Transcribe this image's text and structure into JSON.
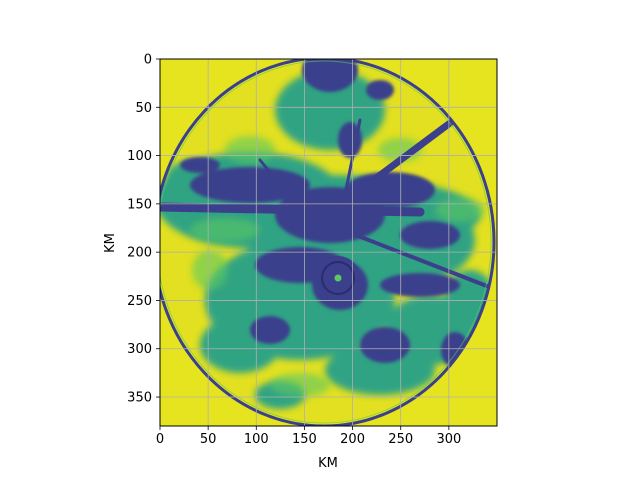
{
  "chart_data": {
    "type": "heatmap",
    "title": "",
    "xlabel": "KM",
    "ylabel": "KM",
    "xlim": [
      0,
      350
    ],
    "ylim": [
      380,
      0
    ],
    "x_ticks": [
      0,
      50,
      100,
      150,
      200,
      250,
      300
    ],
    "y_ticks": [
      0,
      50,
      100,
      150,
      200,
      250,
      300,
      350
    ],
    "grid": true,
    "colormap": "viridis",
    "content": "radar reflectivity field within a circular scan; outside the scan range is filled with the high end of the colormap",
    "scan_center_km": [
      170,
      205
    ],
    "eye_center_km": [
      185,
      225
    ],
    "colors": {
      "background_high": "#e6e31f",
      "mid_teal": "#21918c",
      "low_purple": "#3b3f8c",
      "grid": "#b0b0b0"
    }
  }
}
